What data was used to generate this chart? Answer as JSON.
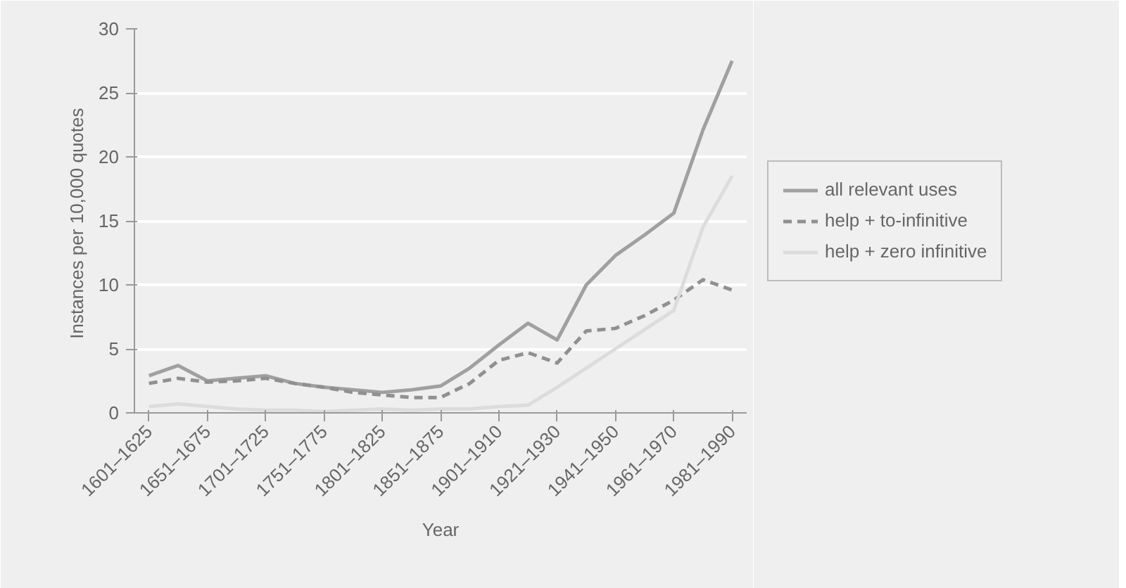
{
  "chart_data": {
    "type": "line",
    "categories": [
      "1601–1625",
      null,
      "1651–1675",
      null,
      "1701–1725",
      null,
      "1751–1775",
      null,
      "1801–1825",
      null,
      "1851–1875",
      null,
      "1901–1910",
      null,
      "1921–1930",
      null,
      "1941–1950",
      null,
      "1961–1970",
      null,
      "1981–1990"
    ],
    "series": [
      {
        "name": "all relevant uses",
        "color": "#a0a0a0",
        "line_style": "solid",
        "values": [
          2.9,
          3.7,
          2.5,
          2.7,
          2.9,
          2.3,
          2.0,
          1.8,
          1.6,
          1.8,
          2.1,
          3.5,
          5.3,
          7.0,
          5.7,
          10.0,
          12.3,
          13.9,
          15.6,
          22.1,
          27.5
        ]
      },
      {
        "name": "help + to-infinitive",
        "color": "#909090",
        "line_style": "dashed",
        "values": [
          2.3,
          2.7,
          2.4,
          2.5,
          2.7,
          2.3,
          2.0,
          1.6,
          1.4,
          1.2,
          1.2,
          2.3,
          4.1,
          4.7,
          3.9,
          6.4,
          6.6,
          7.6,
          8.8,
          10.4,
          9.6
        ]
      },
      {
        "name": "help + zero infinitive",
        "color": "#dcdcdc",
        "line_style": "solid",
        "values": [
          0.5,
          0.7,
          0.5,
          0.3,
          0.2,
          0.2,
          0.1,
          0.2,
          0.3,
          0.2,
          0.3,
          0.3,
          0.5,
          0.6,
          2.0,
          3.5,
          5.0,
          6.5,
          8.0,
          14.5,
          18.5
        ]
      }
    ],
    "xlabel": "Year",
    "ylabel": "Instances per 10,000  quotes",
    "ylim": [
      0,
      30
    ],
    "yticks": [
      0,
      5,
      10,
      15,
      20,
      25,
      30
    ],
    "grid": "y",
    "legend": "right",
    "marker": "none"
  }
}
